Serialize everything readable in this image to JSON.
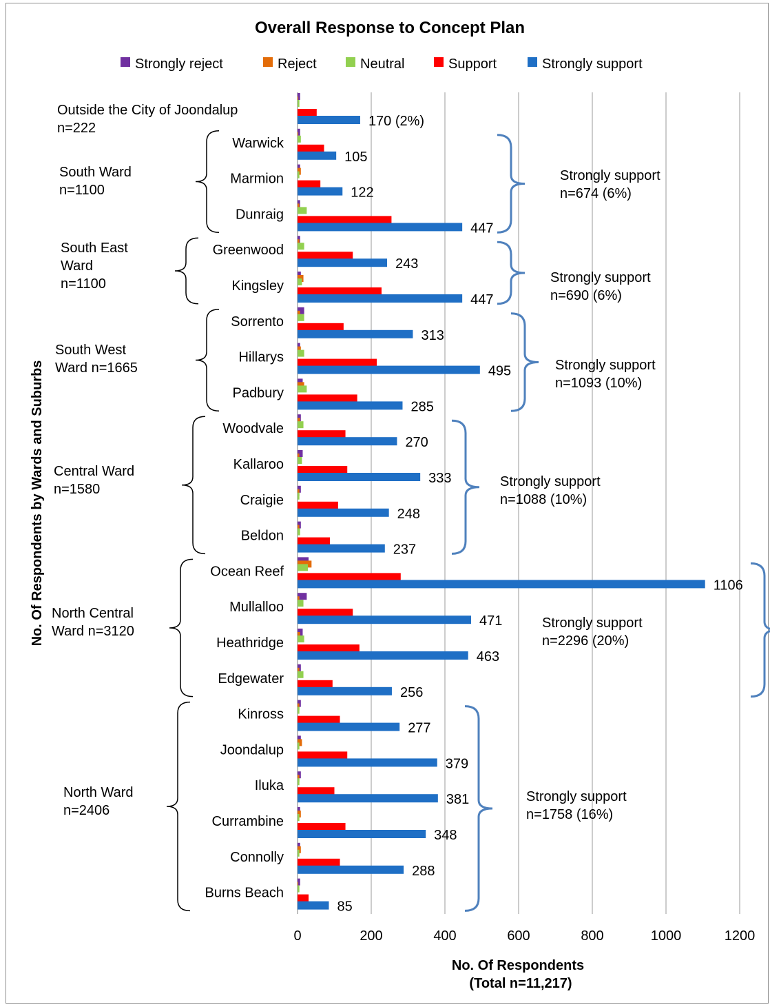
{
  "chart_data": {
    "type": "bar",
    "orientation": "horizontal",
    "title": "Overall Response to Concept Plan",
    "xlabel": "No. Of Respondents",
    "xlabel_sub": "(Total n=11,217)",
    "ylabel": "No. Of Respondents by Wards and Suburbs",
    "xlim": [
      0,
      1200
    ],
    "xticks": [
      "0",
      "200",
      "400",
      "600",
      "800",
      "1000",
      "1200"
    ],
    "grid": "vertical",
    "legend_position": "top",
    "series": [
      {
        "name": "Strongly reject",
        "color": "#7030a0"
      },
      {
        "name": "Reject",
        "color": "#e36c09"
      },
      {
        "name": "Neutral",
        "color": "#92d050"
      },
      {
        "name": "Support",
        "color": "#ff0000"
      },
      {
        "name": "Strongly support",
        "color": "#1f6fc5"
      }
    ],
    "categories": [
      {
        "label": "Outside the City of Joondalup",
        "values": [
          7,
          2,
          5,
          52,
          170
        ],
        "value_label": "170 (2%)"
      },
      {
        "label": "Warwick",
        "values": [
          7,
          2,
          9,
          72,
          105
        ],
        "value_label": "105"
      },
      {
        "label": "Marmion",
        "values": [
          7,
          9,
          5,
          62,
          122
        ],
        "value_label": "122"
      },
      {
        "label": "Dunraig",
        "values": [
          7,
          5,
          25,
          255,
          447
        ],
        "value_label": "447"
      },
      {
        "label": "Greenwood",
        "values": [
          7,
          5,
          18,
          150,
          243
        ],
        "value_label": "243"
      },
      {
        "label": "Kingsley",
        "values": [
          9,
          16,
          12,
          228,
          447
        ],
        "value_label": "447"
      },
      {
        "label": "Sorrento",
        "values": [
          18,
          7,
          18,
          125,
          313
        ],
        "value_label": "313"
      },
      {
        "label": "Hillarys",
        "values": [
          7,
          9,
          18,
          215,
          495
        ],
        "value_label": "495"
      },
      {
        "label": "Padbury",
        "values": [
          14,
          18,
          25,
          162,
          285
        ],
        "value_label": "285"
      },
      {
        "label": "Woodvale",
        "values": [
          9,
          7,
          16,
          130,
          270
        ],
        "value_label": "270"
      },
      {
        "label": "Kallaroo",
        "values": [
          14,
          5,
          12,
          135,
          333
        ],
        "value_label": "333"
      },
      {
        "label": "Craigie",
        "values": [
          9,
          5,
          5,
          110,
          248
        ],
        "value_label": "248"
      },
      {
        "label": "Beldon",
        "values": [
          9,
          5,
          7,
          88,
          237
        ],
        "value_label": "237"
      },
      {
        "label": "Ocean Reef",
        "values": [
          30,
          38,
          28,
          280,
          1106
        ],
        "value_label": "1106"
      },
      {
        "label": "Mullalloo",
        "values": [
          25,
          5,
          16,
          150,
          471
        ],
        "value_label": "471"
      },
      {
        "label": "Heathridge",
        "values": [
          14,
          7,
          18,
          168,
          463
        ],
        "value_label": "463"
      },
      {
        "label": "Edgewater",
        "values": [
          9,
          5,
          16,
          95,
          256
        ],
        "value_label": "256"
      },
      {
        "label": "Kinross",
        "values": [
          9,
          5,
          5,
          115,
          277
        ],
        "value_label": "277"
      },
      {
        "label": "Joondalup",
        "values": [
          9,
          12,
          5,
          135,
          379
        ],
        "value_label": "379"
      },
      {
        "label": "Iluka",
        "values": [
          9,
          5,
          5,
          100,
          381
        ],
        "value_label": "381"
      },
      {
        "label": "Currambine",
        "values": [
          7,
          9,
          5,
          130,
          348
        ],
        "value_label": "348"
      },
      {
        "label": "Connolly",
        "values": [
          7,
          9,
          5,
          115,
          288
        ],
        "value_label": "288"
      },
      {
        "label": "Burns Beach",
        "values": [
          7,
          2,
          5,
          30,
          85
        ],
        "value_label": "85"
      }
    ],
    "wards": [
      {
        "lines": [
          "Outside the City of Joondalup",
          "n=222"
        ],
        "first": 0,
        "last": 0
      },
      {
        "lines": [
          "South Ward",
          "n=1100"
        ],
        "first": 1,
        "last": 3
      },
      {
        "lines": [
          "South East",
          "Ward",
          "n=1100"
        ],
        "first": 4,
        "last": 5
      },
      {
        "lines": [
          "South West",
          "Ward n=1665"
        ],
        "first": 6,
        "last": 8
      },
      {
        "lines": [
          "Central Ward",
          "n=1580"
        ],
        "first": 9,
        "last": 12
      },
      {
        "lines": [
          "North Central",
          "Ward n=3120"
        ],
        "first": 13,
        "last": 16
      },
      {
        "lines": [
          "North Ward",
          "n=2406"
        ],
        "first": 17,
        "last": 22
      }
    ],
    "annotations": [
      {
        "lines": [
          "Strongly support",
          "n=674 (6%)"
        ],
        "first": 1,
        "last": 3
      },
      {
        "lines": [
          "Strongly support",
          "n=690 (6%)"
        ],
        "first": 4,
        "last": 5
      },
      {
        "lines": [
          "Strongly support",
          "n=1093 (10%)"
        ],
        "first": 6,
        "last": 8
      },
      {
        "lines": [
          "Strongly support",
          "n=1088 (10%)"
        ],
        "first": 9,
        "last": 12
      },
      {
        "lines": [
          "Strongly support",
          "n=2296 (20%)"
        ],
        "first": 13,
        "last": 16
      },
      {
        "lines": [
          "Strongly support",
          "n=1758 (16%)"
        ],
        "first": 17,
        "last": 22
      }
    ]
  }
}
